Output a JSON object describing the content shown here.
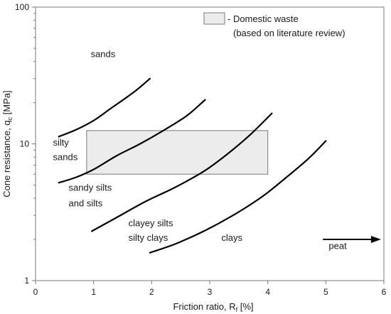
{
  "chart_data": {
    "type": "line",
    "title": "",
    "xlabel": "Friction ratio, R",
    "xlabel_sub": "f",
    "xlabel_suffix": " [%]",
    "ylabel": "Cone resistance, q",
    "ylabel_sub": "c",
    "ylabel_suffix": " [MPa]",
    "xlim": [
      0,
      6
    ],
    "ylim": [
      1,
      100
    ],
    "yscale": "log",
    "grid": false,
    "x_ticks": [
      0,
      1,
      2,
      3,
      4,
      5,
      6
    ],
    "x_tick_labels": [
      "0",
      "1",
      "2",
      "3",
      "4",
      "5",
      "6"
    ],
    "y_ticks": [
      1,
      10,
      100
    ],
    "y_tick_labels": [
      "1",
      "10",
      "100"
    ],
    "boundaries": [
      {
        "points": [
          [
            0.4,
            11.3
          ],
          [
            0.7,
            12.7
          ],
          [
            1.0,
            14.8
          ],
          [
            1.3,
            18.2
          ],
          [
            1.7,
            24.0
          ],
          [
            1.97,
            30.0
          ]
        ]
      },
      {
        "points": [
          [
            0.4,
            5.2
          ],
          [
            0.7,
            5.7
          ],
          [
            1.0,
            6.5
          ],
          [
            1.4,
            8.2
          ],
          [
            1.8,
            10.0
          ],
          [
            2.2,
            12.5
          ],
          [
            2.6,
            16.0
          ],
          [
            2.92,
            21.0
          ]
        ]
      },
      {
        "points": [
          [
            0.97,
            2.3
          ],
          [
            1.4,
            2.9
          ],
          [
            1.9,
            3.8
          ],
          [
            2.4,
            4.8
          ],
          [
            2.9,
            6.3
          ],
          [
            3.3,
            8.4
          ],
          [
            3.7,
            11.7
          ],
          [
            4.07,
            16.7
          ]
        ]
      },
      {
        "points": [
          [
            1.97,
            1.6
          ],
          [
            2.4,
            1.85
          ],
          [
            2.9,
            2.3
          ],
          [
            3.4,
            3.0
          ],
          [
            3.9,
            4.1
          ],
          [
            4.3,
            5.6
          ],
          [
            4.7,
            7.8
          ],
          [
            5.0,
            10.5
          ]
        ]
      }
    ],
    "domestic_waste_box": {
      "x": [
        0.88,
        4.0
      ],
      "y": [
        6.0,
        12.5
      ]
    },
    "legend": {
      "box_label": "- Domestic waste",
      "box_label_2": "(based on literature review)",
      "position": "top-right"
    },
    "zone_labels": [
      {
        "text": "sands",
        "x": 0.95,
        "y": 43
      },
      {
        "text": "silty",
        "x": 0.3,
        "y": 9.7
      },
      {
        "text": "sands",
        "x": 0.3,
        "y": 7.6
      },
      {
        "text": "sandy silts",
        "x": 0.57,
        "y": 4.55
      },
      {
        "text": "and silts",
        "x": 0.57,
        "y": 3.5
      },
      {
        "text": "clayey silts",
        "x": 1.6,
        "y": 2.5
      },
      {
        "text": "silty clays",
        "x": 1.6,
        "y": 1.95
      },
      {
        "text": "clays",
        "x": 3.2,
        "y": 1.95
      },
      {
        "text": "peat",
        "x": 5.05,
        "y": 1.7
      }
    ],
    "peat_arrow": {
      "from": [
        4.95,
        2.0
      ],
      "to": [
        5.95,
        2.0
      ]
    }
  }
}
